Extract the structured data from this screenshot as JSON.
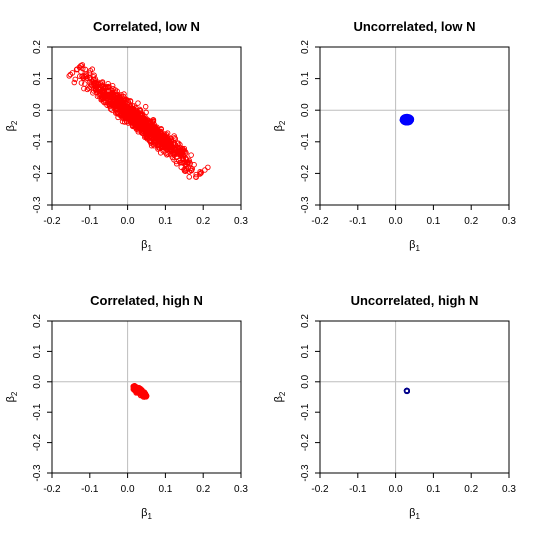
{
  "chart_data": [
    {
      "type": "scatter",
      "title": "Correlated, low N",
      "xlabel": "β1",
      "ylabel": "β2",
      "xlim": [
        -0.2,
        0.3
      ],
      "ylim": [
        -0.3,
        0.2
      ],
      "xticks": [
        "-0.2",
        "-0.1",
        "0.0",
        "0.1",
        "0.2",
        "0.3"
      ],
      "yticks": [
        "-0.3",
        "-0.2",
        "-0.1",
        "0.0",
        "0.1",
        "0.2"
      ],
      "reference_lines": {
        "x": 0,
        "y": 0
      },
      "point_color": "#ff0000",
      "marker": "open-circle",
      "cloud": {
        "center": [
          0.03,
          -0.035
        ],
        "slope": -1.0,
        "x_range": [
          -0.13,
          0.2
        ],
        "perpendicular_spread": 0.012
      }
    },
    {
      "type": "scatter",
      "title": "Uncorrelated, low N",
      "xlabel": "β1",
      "ylabel": "β2",
      "xlim": [
        -0.2,
        0.3
      ],
      "ylim": [
        -0.3,
        0.2
      ],
      "xticks": [
        "-0.2",
        "-0.1",
        "0.0",
        "0.1",
        "0.2",
        "0.3"
      ],
      "yticks": [
        "-0.3",
        "-0.2",
        "-0.1",
        "0.0",
        "0.1",
        "0.2"
      ],
      "reference_lines": {
        "x": 0,
        "y": 0
      },
      "point_color": "#0000ff",
      "marker": "open-circle",
      "cloud": {
        "center": [
          0.03,
          -0.03
        ],
        "radius_x": 0.012,
        "radius_y": 0.01
      }
    },
    {
      "type": "scatter",
      "title": "Correlated, high N",
      "xlabel": "β1",
      "ylabel": "β2",
      "xlim": [
        -0.2,
        0.3
      ],
      "ylim": [
        -0.3,
        0.2
      ],
      "xticks": [
        "-0.2",
        "-0.1",
        "0.0",
        "0.1",
        "0.2",
        "0.3"
      ],
      "yticks": [
        "-0.3",
        "-0.2",
        "-0.1",
        "0.0",
        "0.1",
        "0.2"
      ],
      "reference_lines": {
        "x": 0,
        "y": 0
      },
      "point_color": "#ff0000",
      "marker": "open-circle",
      "cloud": {
        "center": [
          0.032,
          -0.032
        ],
        "slope": -1.0,
        "x_range": [
          0.015,
          0.05
        ],
        "perpendicular_spread": 0.003
      }
    },
    {
      "type": "scatter",
      "title": "Uncorrelated, high N",
      "xlabel": "β1",
      "ylabel": "β2",
      "xlim": [
        -0.2,
        0.3
      ],
      "ylim": [
        -0.3,
        0.2
      ],
      "xticks": [
        "-0.2",
        "-0.1",
        "0.0",
        "0.1",
        "0.2",
        "0.3"
      ],
      "yticks": [
        "-0.3",
        "-0.2",
        "-0.1",
        "0.0",
        "0.1",
        "0.2"
      ],
      "reference_lines": {
        "x": 0,
        "y": 0
      },
      "point_color": "#00008b",
      "marker": "open-circle",
      "cloud": {
        "center": [
          0.03,
          -0.03
        ],
        "radius_x": 0.0015,
        "radius_y": 0.0015
      }
    }
  ]
}
